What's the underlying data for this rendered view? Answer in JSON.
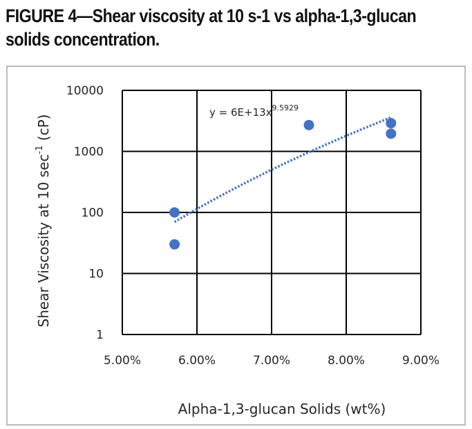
{
  "figure": {
    "title_line1": "FIGURE 4—Shear viscosity at 10 s-1 vs alpha-1,3-glucan",
    "title_line2": "solids concentration."
  },
  "chart_data": {
    "type": "scatter",
    "title": "",
    "xlabel": "Alpha-1,3-glucan Solids (wt%)",
    "ylabel_prefix": "Shear Viscosity at 10 sec",
    "ylabel_sup": "-1",
    "ylabel_suffix": " (cP)",
    "x_scale": "linear",
    "y_scale": "log",
    "xlim": [
      0.05,
      0.09
    ],
    "ylim": [
      1,
      10000
    ],
    "x_ticks": [
      0.05,
      0.06,
      0.07,
      0.08,
      0.09
    ],
    "x_tick_labels": [
      "5.00%",
      "6.00%",
      "7.00%",
      "8.00%",
      "9.00%"
    ],
    "y_ticks": [
      1,
      10,
      100,
      1000,
      10000
    ],
    "y_tick_labels": [
      "1",
      "10",
      "100",
      "1000",
      "10000"
    ],
    "grid": true,
    "legend": "none",
    "marker_color": "#4472c4",
    "points": [
      {
        "x": 0.057,
        "y": 100
      },
      {
        "x": 0.057,
        "y": 30
      },
      {
        "x": 0.075,
        "y": 2700
      },
      {
        "x": 0.086,
        "y": 2900
      },
      {
        "x": 0.086,
        "y": 1950
      }
    ],
    "trendline": {
      "type": "power",
      "style": "dotted",
      "color": "#4472c4",
      "a": 60000000000000.0,
      "b": 9.5929,
      "x_range": [
        0.057,
        0.086
      ],
      "equation_main": "y = 6E+13x",
      "equation_sup": "9.5929"
    }
  }
}
